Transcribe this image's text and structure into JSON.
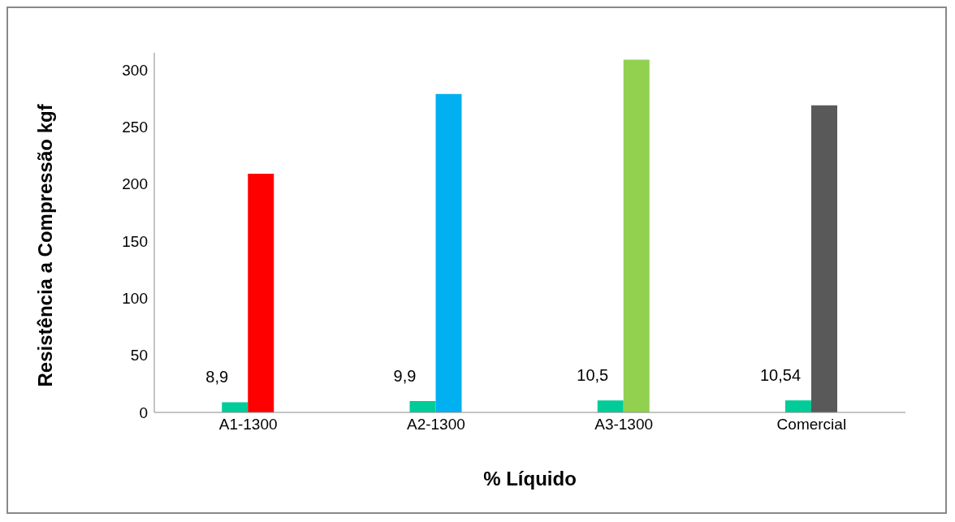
{
  "chart_data": {
    "type": "bar",
    "xlabel": "% Líquido",
    "ylabel": "Resistência a Compressão kgf",
    "categories": [
      "A1-1300",
      "A2-1300",
      "A3-1300",
      "Comercial"
    ],
    "series": [
      {
        "color": "#00cc99",
        "values": [
          8.9,
          9.9,
          10.5,
          10.54
        ],
        "value_labels": [
          "8,9",
          "9,9",
          "10,5",
          "10,54"
        ]
      },
      {
        "colors": [
          "#ff0000",
          "#00b0f0",
          "#92d050",
          "#595959"
        ],
        "values": [
          209,
          279,
          309,
          269
        ]
      }
    ],
    "ylim": [
      0,
      315
    ],
    "yticks": [
      0,
      50,
      100,
      150,
      200,
      250,
      300
    ],
    "grid": false,
    "legend": false
  }
}
